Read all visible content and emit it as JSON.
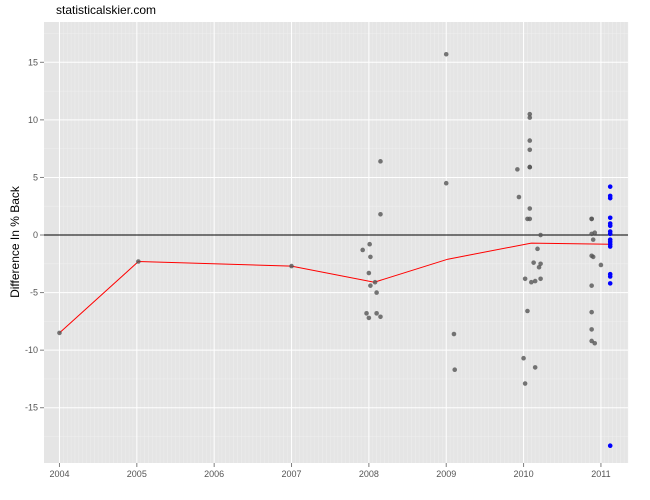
{
  "watermark": "statisticalskier.com",
  "chart_data": {
    "type": "scatter",
    "ylabel": "Difference In % Back",
    "xlim": [
      2003.8,
      2011.35
    ],
    "ylim": [
      -19.8,
      18.5
    ],
    "x_ticks": [
      2004,
      2005,
      2006,
      2007,
      2008,
      2009,
      2010,
      2011
    ],
    "x_tick_labels": [
      "2004",
      "2005",
      "2006",
      "2007",
      "2008",
      "2009",
      "2010",
      "2011"
    ],
    "y_ticks": [
      -15,
      -10,
      -5,
      0,
      5,
      10,
      15
    ],
    "y_tick_labels": [
      "-15",
      "-10",
      "-5",
      "0",
      "5",
      "10",
      "15"
    ],
    "grid": true,
    "reference_line_y": 0,
    "colors": {
      "panel": "#e5e5e5",
      "grid_major": "#ffffff",
      "grid_minor": "#f0f0f0",
      "points_past": "#555555",
      "points_current": "#0000ff",
      "trend": "#ff0000",
      "reference": "#000000"
    },
    "trend_line": {
      "x": [
        2004.0,
        2005.02,
        2007.0,
        2008.07,
        2009.02,
        2010.1,
        2011.12
      ],
      "y": [
        -8.5,
        -2.3,
        -2.7,
        -4.1,
        -2.1,
        -0.7,
        -0.8
      ]
    },
    "series": [
      {
        "color": "#555555",
        "points": [
          {
            "x": 2004.0,
            "y": -8.5
          },
          {
            "x": 2005.02,
            "y": -2.3
          },
          {
            "x": 2007.0,
            "y": -2.7
          },
          {
            "x": 2007.92,
            "y": -1.3
          },
          {
            "x": 2007.97,
            "y": -6.8
          },
          {
            "x": 2008.0,
            "y": -3.3
          },
          {
            "x": 2008.0,
            "y": -7.2
          },
          {
            "x": 2008.01,
            "y": -0.8
          },
          {
            "x": 2008.02,
            "y": -1.9
          },
          {
            "x": 2008.02,
            "y": -4.4
          },
          {
            "x": 2008.08,
            "y": -4.1
          },
          {
            "x": 2008.1,
            "y": -5.0
          },
          {
            "x": 2008.1,
            "y": -6.8
          },
          {
            "x": 2008.15,
            "y": 6.4
          },
          {
            "x": 2008.15,
            "y": 1.8
          },
          {
            "x": 2008.15,
            "y": -7.1
          },
          {
            "x": 2009.0,
            "y": 15.7
          },
          {
            "x": 2009.0,
            "y": 4.5
          },
          {
            "x": 2009.1,
            "y": -8.6
          },
          {
            "x": 2009.11,
            "y": -11.7
          },
          {
            "x": 2009.92,
            "y": 5.7
          },
          {
            "x": 2009.94,
            "y": 3.3
          },
          {
            "x": 2010.0,
            "y": -10.7
          },
          {
            "x": 2010.02,
            "y": -12.9
          },
          {
            "x": 2010.02,
            "y": -3.8
          },
          {
            "x": 2010.05,
            "y": 1.4
          },
          {
            "x": 2010.05,
            "y": -6.6
          },
          {
            "x": 2010.08,
            "y": 10.5
          },
          {
            "x": 2010.08,
            "y": 10.2
          },
          {
            "x": 2010.08,
            "y": 8.2
          },
          {
            "x": 2010.08,
            "y": 7.4
          },
          {
            "x": 2010.08,
            "y": 5.9
          },
          {
            "x": 2010.08,
            "y": 5.9
          },
          {
            "x": 2010.08,
            "y": 2.3
          },
          {
            "x": 2010.08,
            "y": 1.4
          },
          {
            "x": 2010.1,
            "y": -4.1
          },
          {
            "x": 2010.13,
            "y": -2.4
          },
          {
            "x": 2010.15,
            "y": -11.5
          },
          {
            "x": 2010.15,
            "y": -4.0
          },
          {
            "x": 2010.18,
            "y": -1.2
          },
          {
            "x": 2010.2,
            "y": -2.8
          },
          {
            "x": 2010.22,
            "y": 0.0
          },
          {
            "x": 2010.22,
            "y": -2.5
          },
          {
            "x": 2010.22,
            "y": -3.8
          },
          {
            "x": 2010.88,
            "y": 1.4
          },
          {
            "x": 2010.88,
            "y": 1.4
          },
          {
            "x": 2010.88,
            "y": 0.1
          },
          {
            "x": 2010.88,
            "y": -1.8
          },
          {
            "x": 2010.88,
            "y": -4.4
          },
          {
            "x": 2010.88,
            "y": -6.7
          },
          {
            "x": 2010.88,
            "y": -8.2
          },
          {
            "x": 2010.88,
            "y": -9.2
          },
          {
            "x": 2010.9,
            "y": -0.4
          },
          {
            "x": 2010.9,
            "y": -1.9
          },
          {
            "x": 2010.92,
            "y": 0.2
          },
          {
            "x": 2010.92,
            "y": -9.4
          },
          {
            "x": 2011.0,
            "y": -2.6
          }
        ]
      },
      {
        "color": "#0000ff",
        "points": [
          {
            "x": 2011.12,
            "y": 4.2
          },
          {
            "x": 2011.12,
            "y": 3.4
          },
          {
            "x": 2011.12,
            "y": 3.2
          },
          {
            "x": 2011.12,
            "y": 1.5
          },
          {
            "x": 2011.12,
            "y": 1.0
          },
          {
            "x": 2011.12,
            "y": 0.8
          },
          {
            "x": 2011.12,
            "y": 0.3
          },
          {
            "x": 2011.12,
            "y": 0.1
          },
          {
            "x": 2011.12,
            "y": -0.4
          },
          {
            "x": 2011.12,
            "y": -0.6
          },
          {
            "x": 2011.12,
            "y": -0.8
          },
          {
            "x": 2011.12,
            "y": -1.0
          },
          {
            "x": 2011.12,
            "y": -3.4
          },
          {
            "x": 2011.12,
            "y": -3.6
          },
          {
            "x": 2011.12,
            "y": -4.2
          },
          {
            "x": 2011.12,
            "y": -18.3
          }
        ]
      }
    ]
  }
}
